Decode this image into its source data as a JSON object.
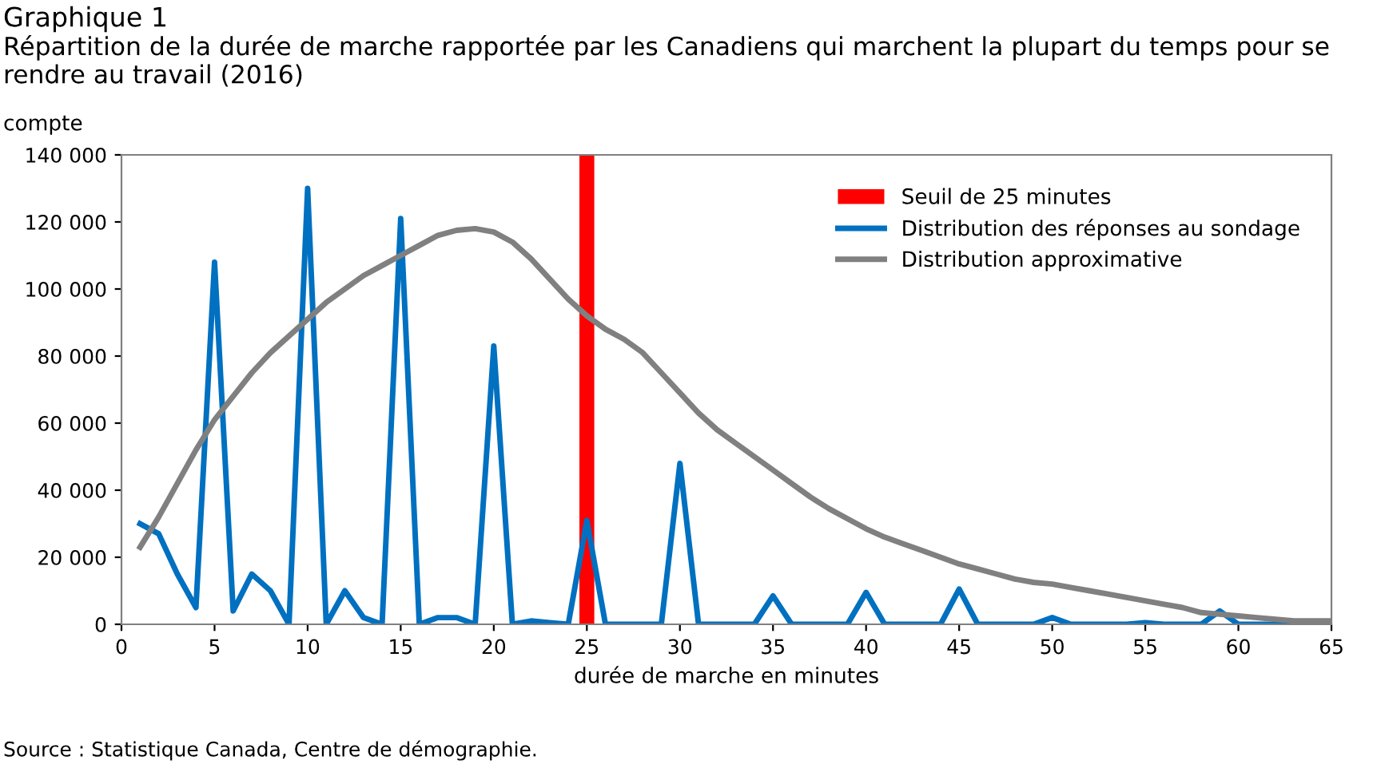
{
  "chart_data": {
    "type": "line",
    "title": "Graphique 1",
    "subtitle": "Répartition de la durée de marche rapportée par les Canadiens qui marchent la plupart du temps pour se rendre au travail (2016)",
    "xlabel": "durée de marche en minutes",
    "ylabel": "compte",
    "x": [
      1,
      2,
      3,
      4,
      5,
      6,
      7,
      8,
      9,
      10,
      11,
      12,
      13,
      14,
      15,
      16,
      17,
      18,
      19,
      20,
      21,
      22,
      23,
      24,
      25,
      26,
      27,
      28,
      29,
      30,
      31,
      32,
      33,
      34,
      35,
      36,
      37,
      38,
      39,
      40,
      41,
      42,
      43,
      44,
      45,
      46,
      47,
      48,
      49,
      50,
      51,
      52,
      53,
      54,
      55,
      56,
      57,
      58,
      59,
      60,
      61,
      62,
      63,
      64,
      65
    ],
    "series": [
      {
        "name": "Seuil de 25 minutes",
        "type": "bar",
        "color": "#ff0000",
        "x": [
          25
        ],
        "values": [
          140000
        ]
      },
      {
        "name": "Distribution des réponses au sondage",
        "color": "#0070c0",
        "values": [
          30000,
          27000,
          15000,
          5000,
          108000,
          4000,
          15000,
          10000,
          0,
          130000,
          0,
          10000,
          2000,
          0,
          121000,
          0,
          2000,
          2000,
          0,
          83000,
          0,
          1000,
          500,
          0,
          31000,
          0,
          0,
          0,
          0,
          48000,
          0,
          0,
          0,
          0,
          8500,
          0,
          0,
          0,
          0,
          9500,
          0,
          0,
          0,
          0,
          10500,
          0,
          0,
          0,
          0,
          2000,
          0,
          0,
          0,
          0,
          500,
          0,
          0,
          0,
          4000,
          0,
          0,
          0,
          0,
          0,
          0
        ]
      },
      {
        "name": "Distribution approximative",
        "color": "#808080",
        "values": [
          23000,
          32000,
          42000,
          52000,
          61000,
          68000,
          75000,
          81000,
          86000,
          91000,
          96000,
          100000,
          104000,
          107000,
          110000,
          113000,
          116000,
          117500,
          118000,
          117000,
          114000,
          109000,
          103000,
          97000,
          92000,
          88000,
          85000,
          81000,
          75000,
          69000,
          63000,
          58000,
          54000,
          50000,
          46000,
          42000,
          38000,
          34500,
          31500,
          28500,
          26000,
          24000,
          22000,
          20000,
          18000,
          16500,
          15000,
          13500,
          12500,
          12000,
          11000,
          10000,
          9000,
          8000,
          7000,
          6000,
          5000,
          3500,
          3000,
          2500,
          2000,
          1500,
          1000,
          1000,
          1000
        ]
      }
    ],
    "xlim": [
      0,
      65
    ],
    "xticks": [
      0,
      5,
      10,
      15,
      20,
      25,
      30,
      35,
      40,
      45,
      50,
      55,
      60,
      65
    ],
    "ylim": [
      0,
      140000
    ],
    "yticks": [
      0,
      {
        "value": 20000,
        "label": "20 000"
      },
      {
        "value": 40000,
        "label": "40 000"
      },
      {
        "value": 60000,
        "label": "60 000"
      },
      {
        "value": 80000,
        "label": "80 000"
      },
      {
        "value": 100000,
        "label": "100 000"
      },
      {
        "value": 120000,
        "label": "120 000"
      },
      {
        "value": 140000,
        "label": "140 000"
      }
    ],
    "grid": false,
    "legend": "top right",
    "marker": "none",
    "line_style": "solid",
    "annotations": [
      "Source : Statistique Canada, Centre de démographie."
    ]
  }
}
